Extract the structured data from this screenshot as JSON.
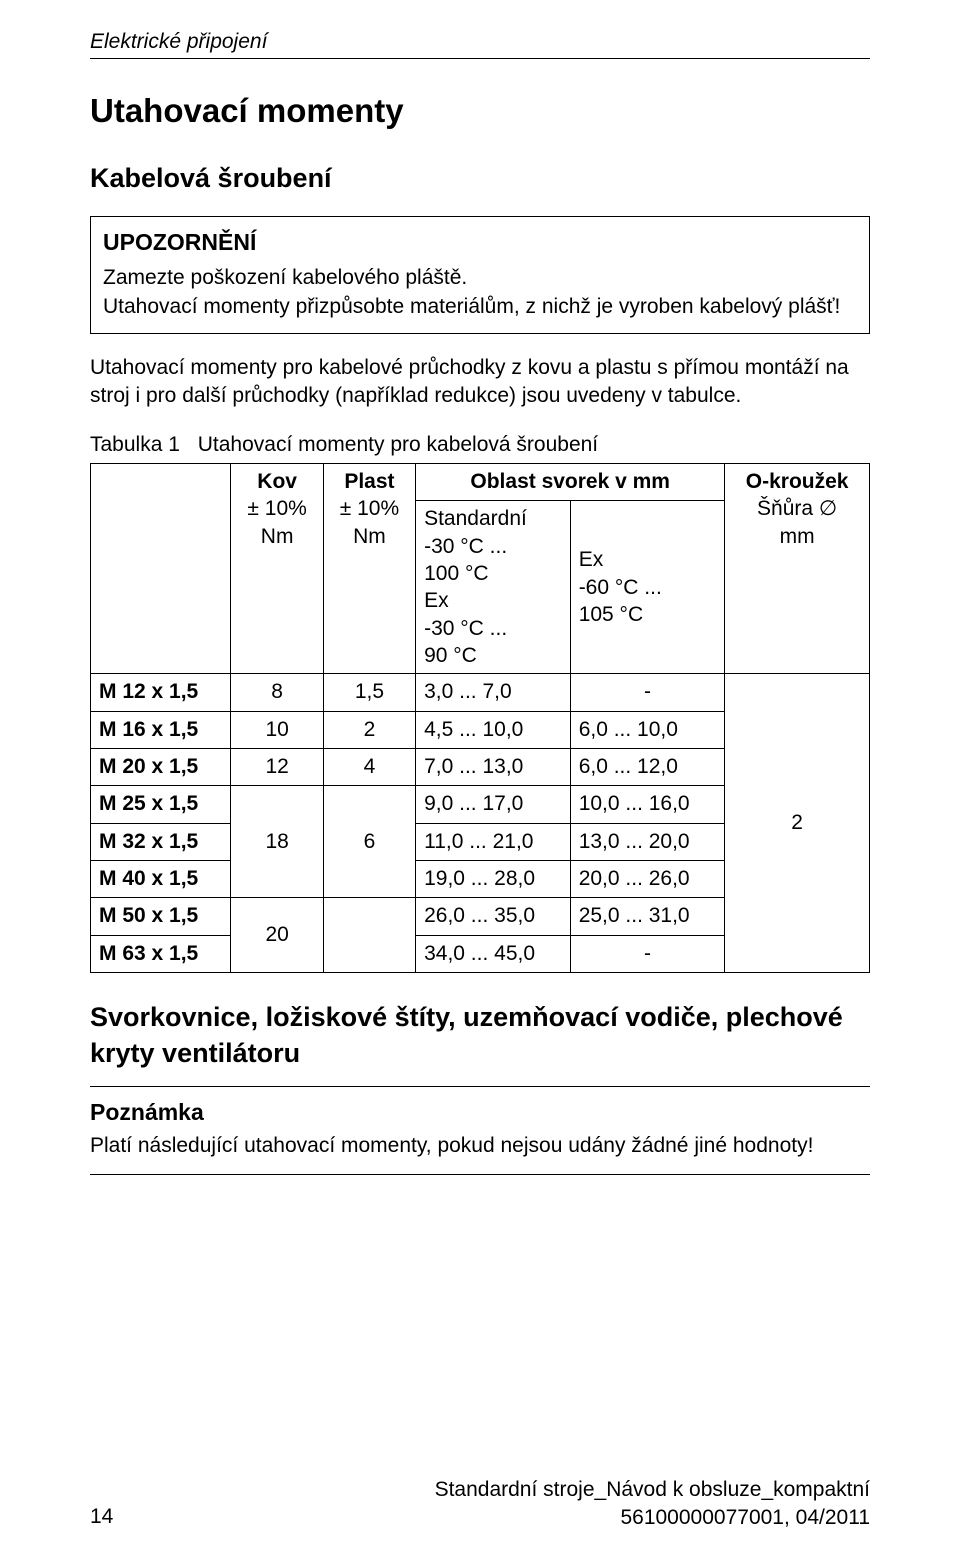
{
  "header": {
    "section": "Elektrické připojení"
  },
  "h1": "Utahovací momenty",
  "h2": "Kabelová šroubení",
  "notice": {
    "title": "UPOZORNĚNÍ",
    "line1": "Zamezte poškození kabelového pláště.",
    "line2": "Utahovací momenty přizpůsobte materiálům, z nichž je vyroben kabelový plášť!"
  },
  "intro": "Utahovací momenty pro kabelové průchodky z kovu a plastu s přímou montáží na stroj i pro další průchodky (například redukce) jsou uvedeny v tabulce.",
  "tableCaption": {
    "label": "Tabulka 1",
    "text": "Utahovací momenty pro kabelová šroubení"
  },
  "colHeaders": {
    "kov": "Kov",
    "kovUnit": "± 10%\nNm",
    "plast": "Plast",
    "plastUnit": "± 10%\nNm",
    "oblast": "Oblast svorek v mm",
    "okrouzek": "O-kroužek",
    "snura": "Šňůra ∅\nmm",
    "std": "Standardní\n-30 °C ...\n100 °C\nEx\n-30 °C ...\n90 °C",
    "ex": "Ex\n-60 °C ...\n105 °C"
  },
  "rows": [
    {
      "size": "M 12 x 1,5",
      "kov": "8",
      "plast": "1,5",
      "std": "3,0 ... 7,0",
      "ex": "-"
    },
    {
      "size": "M 16 x 1,5",
      "kov": "10",
      "plast": "2",
      "std": "4,5 ... 10,0",
      "ex": "6,0 ... 10,0"
    },
    {
      "size": "M 20 x 1,5",
      "kov": "12",
      "plast": "4",
      "std": "7,0 ... 13,0",
      "ex": "6,0 ... 12,0"
    },
    {
      "size": "M 25 x 1,5",
      "kov": "",
      "plast": "",
      "std": "9,0 ... 17,0",
      "ex": "10,0 ... 16,0"
    },
    {
      "size": "M 32 x 1,5",
      "kov": "18",
      "plast": "",
      "std": "11,0 ... 21,0",
      "ex": "13,0 ... 20,0"
    },
    {
      "size": "M 40 x 1,5",
      "kov": "",
      "plast": "6",
      "std": "19,0 ... 28,0",
      "ex": "20,0 ... 26,0"
    },
    {
      "size": "M 50 x 1,5",
      "kov": "20",
      "plast": "",
      "std": "26,0 ... 35,0",
      "ex": "25,0 ... 31,0"
    },
    {
      "size": "M 63 x 1,5",
      "kov": "",
      "plast": "",
      "std": "34,0 ... 45,0",
      "ex": "-"
    }
  ],
  "oringValue": "2",
  "section2": "Svorkovnice, ložiskové štíty, uzemňovací vodiče, plechové kryty ventilátoru",
  "note": {
    "title": "Poznámka",
    "body": "Platí následující utahovací momenty, pokud nejsou udány žádné jiné hodnoty!"
  },
  "footer": {
    "pageNum": "14",
    "line1": "Standardní stroje_Návod k obsluze_kompaktní",
    "line2": "56100000077001, 04/2011"
  }
}
